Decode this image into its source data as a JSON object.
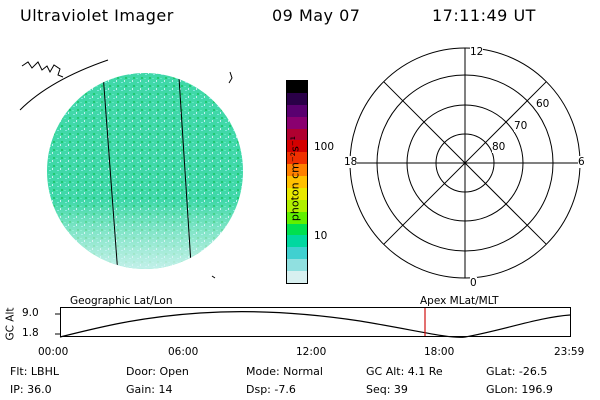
{
  "header": {
    "title": "Ultraviolet Imager",
    "date": "09 May 07",
    "time": "17:11:49 UT"
  },
  "colorbar": {
    "unit_label": "photon cm⁻²s⁻¹",
    "tick_labels": [
      "100",
      "10"
    ],
    "colors": [
      "#000000",
      "#2a0048",
      "#5a0070",
      "#8a0070",
      "#b00030",
      "#d40000",
      "#f03000",
      "#ff8000",
      "#ffc000",
      "#e8e800",
      "#b0f000",
      "#60f000",
      "#00e050",
      "#00d8a0",
      "#40d0d0",
      "#90e0e0",
      "#d8f0f0"
    ]
  },
  "polar_plot": {
    "labels": {
      "top": "12",
      "left": "18",
      "right": "6",
      "bottom": "0"
    },
    "ring_labels": [
      "60",
      "70",
      "80"
    ]
  },
  "track_panel": {
    "left_title": "Geographic Lat/Lon",
    "right_title": "Apex MLat/MLT",
    "y_axis_label": "GC Alt",
    "y_ticks": [
      "9.0",
      "1.8"
    ],
    "x_ticks": [
      "00:00",
      "06:00",
      "12:00",
      "18:00",
      "23:59"
    ],
    "marker_color": "#d01010"
  },
  "info": {
    "flt": "Flt: LBHL",
    "ip": "IP: 36.0",
    "door": "Door: Open",
    "gain": "Gain: 14",
    "mode": "Mode: Normal",
    "dsp": "Dsp:    -7.6",
    "gc_alt": "GC Alt: 4.1 Re",
    "seq": "Seq: 39",
    "glat": "GLat: -26.5",
    "glon": "GLon: 196.9"
  },
  "image_colors": {
    "fill": "#40d8a8",
    "speckle_a": "#80e8e0",
    "speckle_b": "#20c870",
    "speckle_c": "#c8f0f0"
  }
}
